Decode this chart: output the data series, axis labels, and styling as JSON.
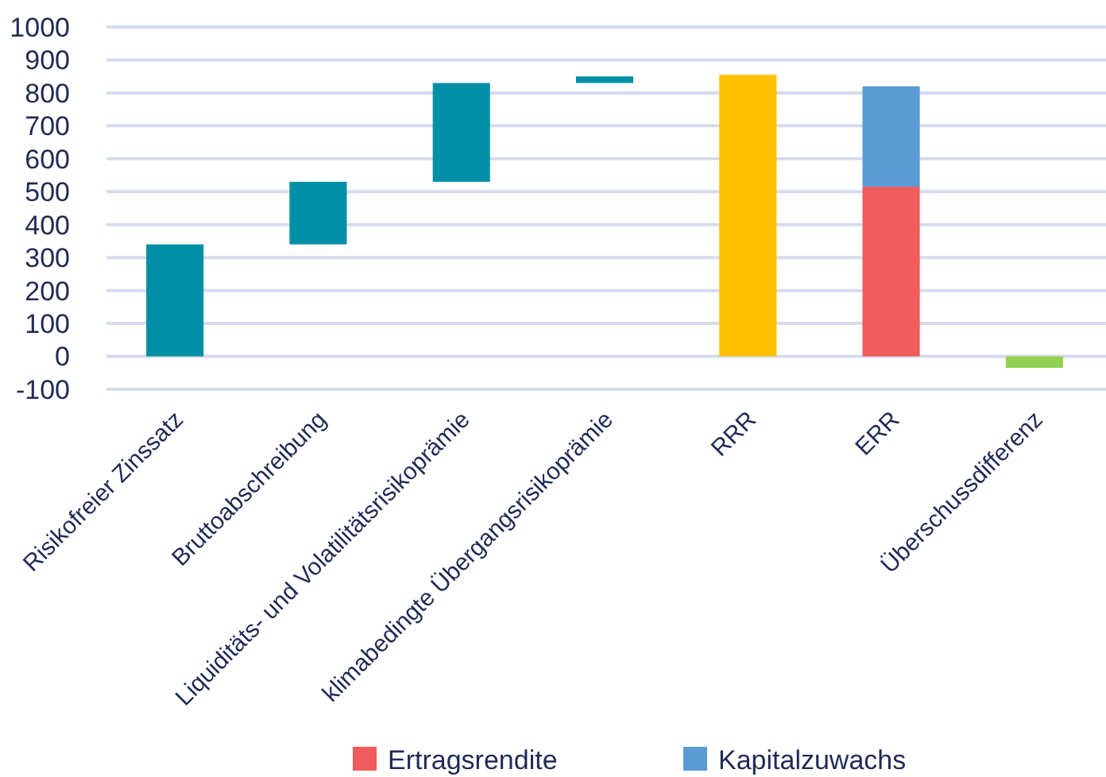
{
  "chart_data": {
    "type": "bar",
    "categories": [
      "Risikofreier Zinssatz",
      "Bruttoabschreibung",
      "Liquiditäts- und Volatilitätsrisikoprämie",
      "klimabedingte Übergangsrisikoprämie",
      "RRR",
      "ERR",
      "Überschussdifferenz"
    ],
    "stacked": true,
    "series": [
      {
        "colors": [
          "#008fa5",
          "#008fa5",
          "#008fa5",
          "#008fa5",
          "#ffc000",
          null,
          "#92d050"
        ],
        "values": [
          340,
          190,
          300,
          20,
          855,
          null,
          -35
        ],
        "base": [
          0,
          340,
          530,
          830,
          0,
          null,
          0
        ]
      },
      {
        "name": "Ertragsrendite",
        "color": "#f05b5b",
        "values": [
          null,
          null,
          null,
          null,
          null,
          515,
          null
        ]
      },
      {
        "name": "Kapitalzuwachs",
        "color": "#5b9bd5",
        "values": [
          null,
          null,
          null,
          null,
          null,
          305,
          null
        ]
      }
    ],
    "ylim": [
      -100,
      1000
    ],
    "yticks": [
      -100,
      0,
      100,
      200,
      300,
      400,
      500,
      600,
      700,
      800,
      900,
      1000
    ],
    "grid": "y",
    "legend": "bottom"
  }
}
